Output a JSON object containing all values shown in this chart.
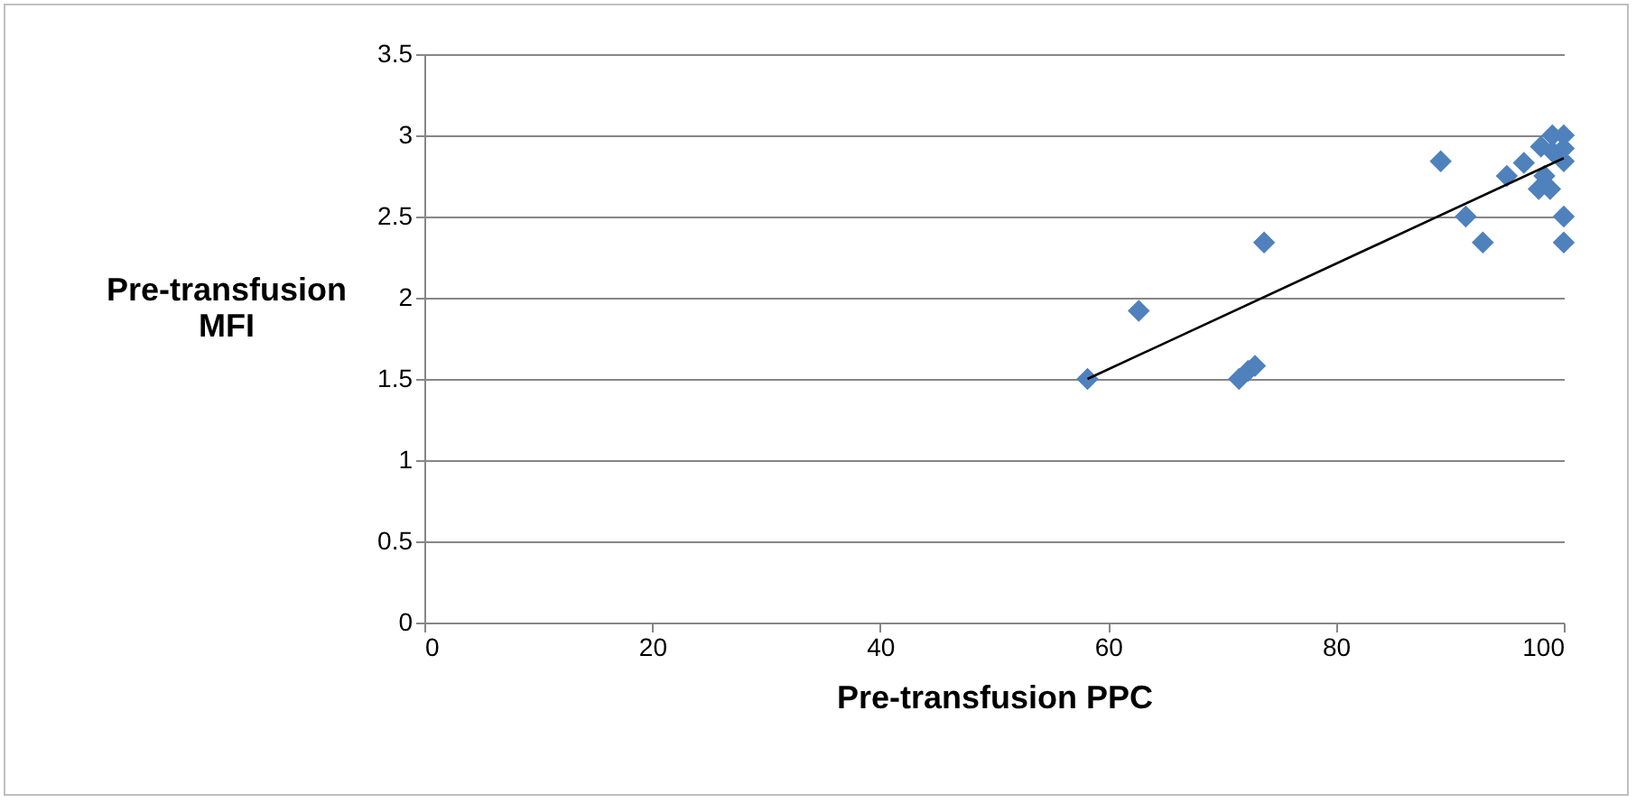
{
  "chart_data": {
    "type": "scatter",
    "xlabel": "Pre-transfusion PPC",
    "ylabel": "Pre-transfusion MFI",
    "xlim": [
      0,
      100
    ],
    "xticks": [
      0,
      20,
      40,
      60,
      80,
      100
    ],
    "ylim": [
      0,
      3.5
    ],
    "yticks": [
      0,
      0.5,
      1,
      1.5,
      2,
      2.5,
      3,
      3.5
    ],
    "grid": "y",
    "marker": "diamond",
    "series": [
      {
        "color": "#4f81bd",
        "x": [
          58.2,
          62.7,
          71.5,
          72.3,
          72.9,
          73.7,
          89.2,
          91.4,
          92.9,
          95,
          96.5,
          98,
          99,
          100,
          100,
          97.8,
          98.8,
          98.3,
          100,
          100,
          99,
          100
        ],
        "values": [
          1.5,
          1.92,
          1.5,
          1.55,
          1.58,
          2.34,
          2.84,
          2.5,
          2.34,
          2.75,
          2.83,
          2.93,
          3.0,
          3.0,
          2.84,
          2.67,
          2.67,
          2.75,
          2.5,
          2.34,
          2.9,
          2.92
        ]
      },
      {
        "type": "line",
        "color": "#000000",
        "marker": "none",
        "x": [
          58.2,
          100
        ],
        "values": [
          1.5,
          2.86
        ]
      }
    ]
  }
}
